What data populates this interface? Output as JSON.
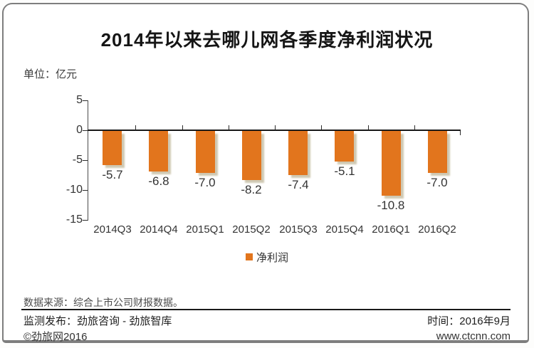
{
  "card": {
    "title": "2014年以来去哪儿网各季度净利润状况",
    "unit_label": "单位：亿元",
    "legend": {
      "label": "净利润"
    },
    "footer": {
      "source": "数据来源：综合上市公司财报数据。",
      "publisher": "监测发布：劲旅咨询 - 劲旅智库",
      "time": "时间：2016年9月",
      "copyright": "©劲旅网2016",
      "website": "www.ctcnn.com"
    }
  },
  "colors": {
    "bar": "#e2751d",
    "bar_shadow": "#cfc8b2",
    "axis": "#191919",
    "text": "#333333"
  },
  "chart_data": {
    "type": "bar",
    "title": "2014年以来去哪儿网各季度净利润状况",
    "ylabel": "单位：亿元",
    "series_name": "净利润",
    "categories": [
      "2014Q3",
      "2014Q4",
      "2015Q1",
      "2015Q2",
      "2015Q3",
      "2015Q4",
      "2016Q1",
      "2016Q2"
    ],
    "values": [
      -5.7,
      -6.8,
      -7.0,
      -8.2,
      -7.4,
      -5.1,
      -10.8,
      -7.0
    ],
    "data_labels": [
      "-5.7",
      "-6.8",
      "-7.0",
      "-8.2",
      "-7.4",
      "-5.1",
      "-10.8",
      "-7.0"
    ],
    "yticks": [
      5,
      0,
      -5,
      -10,
      -15
    ],
    "ylim": [
      -15,
      5
    ],
    "grid": false,
    "bar_color": "#e2751d",
    "legend_position": "bottom"
  }
}
